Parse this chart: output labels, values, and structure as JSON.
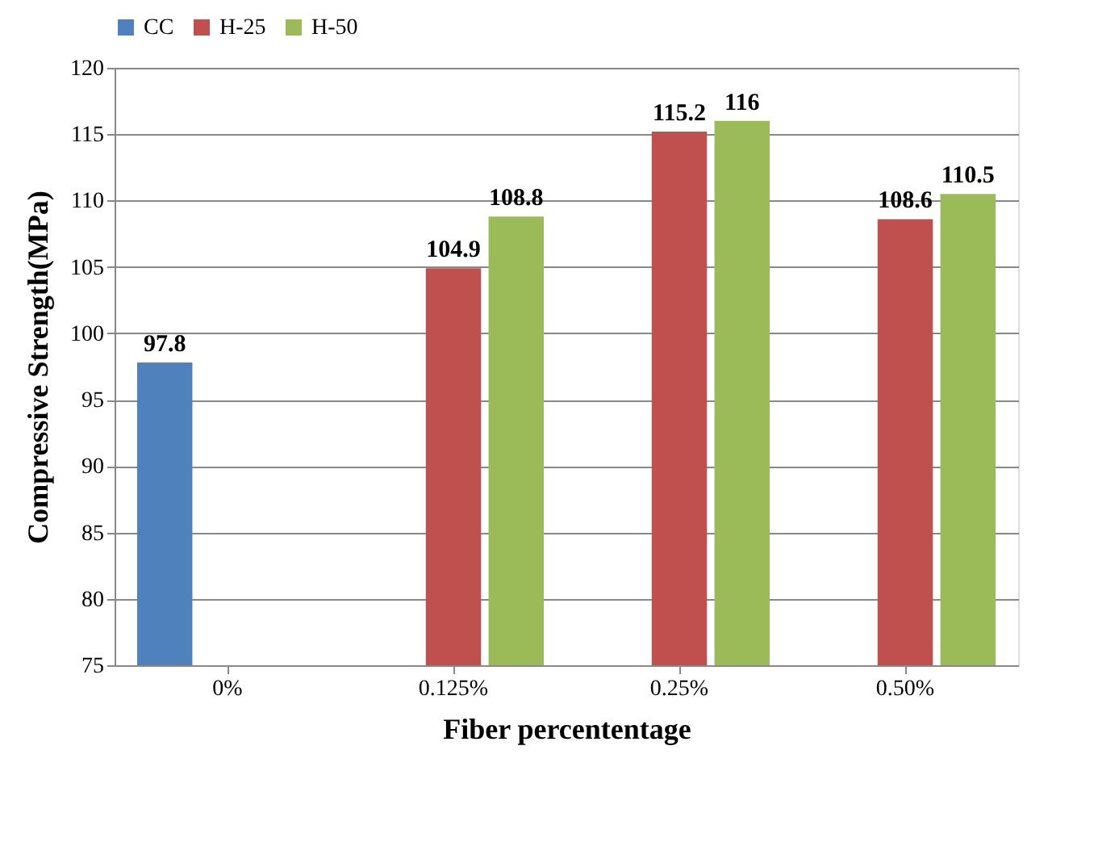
{
  "chart_data": {
    "type": "bar",
    "xlabel": "Fiber percententage",
    "ylabel": "Compressive  Strength(MPa)",
    "categories": [
      "0%",
      "0.125%",
      "0.25%",
      "0.50%"
    ],
    "series": [
      {
        "name": "CC",
        "color": "#4f81bd",
        "values": [
          97.8,
          null,
          null,
          null
        ]
      },
      {
        "name": "H-25",
        "color": "#c0504d",
        "values": [
          null,
          104.9,
          115.2,
          108.6
        ]
      },
      {
        "name": "H-50",
        "color": "#9bbb59",
        "values": [
          null,
          108.8,
          116,
          110.5
        ]
      }
    ],
    "ylim": [
      75,
      120
    ],
    "yticks": [
      75,
      80,
      85,
      90,
      95,
      100,
      105,
      110,
      115,
      120
    ],
    "grid": "y",
    "legend": "top",
    "data_labels": true
  }
}
